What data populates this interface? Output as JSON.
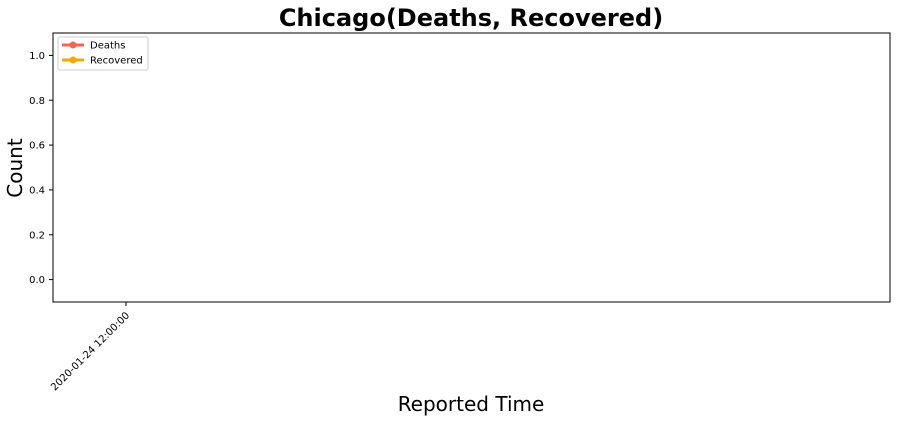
{
  "chart_data": {
    "type": "line",
    "title": "Chicago(Deaths, Recovered)",
    "xlabel": "Reported Time",
    "ylabel": "Count",
    "x": [
      "2020-01-24 12:00:00"
    ],
    "series": [
      {
        "name": "Deaths",
        "color": "#f4634e",
        "values": [
          null
        ]
      },
      {
        "name": "Recovered",
        "color": "#f6a800",
        "values": [
          null
        ]
      }
    ],
    "ylim": [
      -0.1,
      1.1
    ],
    "yticks": [
      0.0,
      0.2,
      0.4,
      0.6,
      0.8,
      1.0
    ],
    "ytick_labels": [
      "0.0",
      "0.2",
      "0.4",
      "0.6",
      "0.8",
      "1.0"
    ],
    "xtick_labels": [
      "2020-01-24 12:00:00"
    ],
    "xtick_rotation_deg": 45,
    "grid": false,
    "legend_position": "upper left"
  }
}
